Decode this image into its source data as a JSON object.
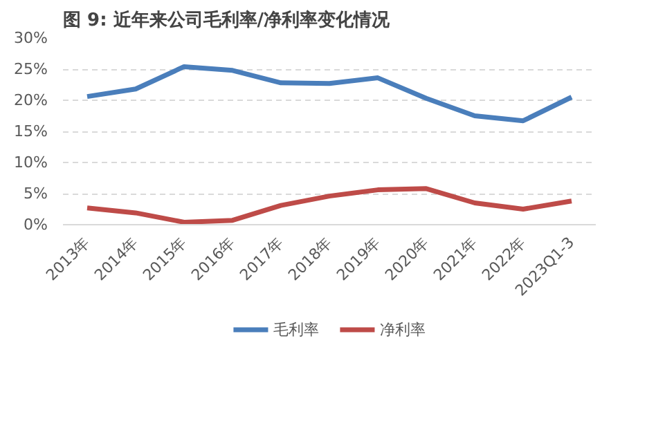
{
  "chart_data": {
    "type": "line",
    "title": "图 9:  近年来公司毛利率/净利率变化情况",
    "categories": [
      "2013年",
      "2014年",
      "2015年",
      "2016年",
      "2017年",
      "2018年",
      "2019年",
      "2020年",
      "2021年",
      "2022年",
      "2023Q1-3"
    ],
    "series": [
      {
        "name": "毛利率",
        "color": "#4a7ebb",
        "values": [
          20.6,
          21.8,
          25.4,
          24.8,
          22.8,
          22.7,
          23.6,
          20.3,
          17.5,
          16.7,
          20.5
        ]
      },
      {
        "name": "净利率",
        "color": "#be4b48",
        "values": [
          2.7,
          1.9,
          0.4,
          0.7,
          3.1,
          4.6,
          5.6,
          5.8,
          3.5,
          2.5,
          3.8
        ]
      }
    ],
    "ylim": [
      0,
      30
    ],
    "yticks": [
      {
        "value": 0,
        "label": "0%"
      },
      {
        "value": 5,
        "label": "5%"
      },
      {
        "value": 10,
        "label": "10%"
      },
      {
        "value": 15,
        "label": "15%"
      },
      {
        "value": 20,
        "label": "20%"
      },
      {
        "value": 25,
        "label": "25%"
      },
      {
        "value": 30,
        "label": "30%"
      }
    ],
    "grid": "y",
    "legend": "bottom",
    "marker": "none",
    "line_style": "solid"
  }
}
